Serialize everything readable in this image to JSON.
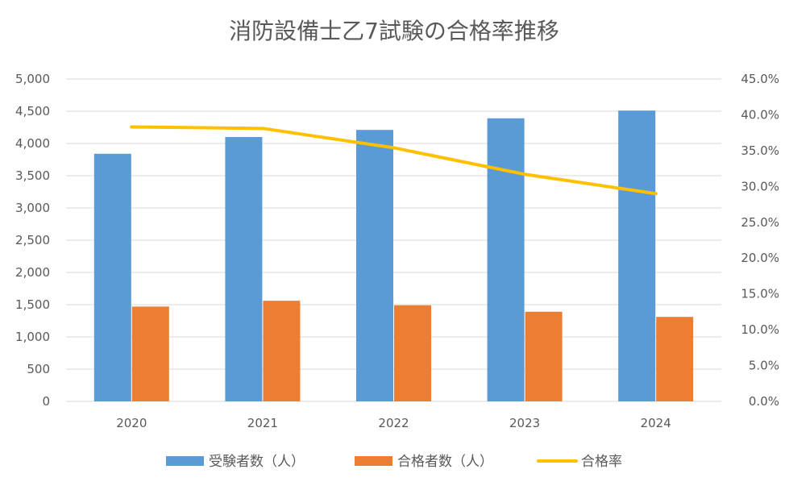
{
  "chart_data": {
    "type": "bar",
    "title": "消防設備士乙7試験の合格率推移",
    "categories": [
      "2020",
      "2021",
      "2022",
      "2023",
      "2024"
    ],
    "series": [
      {
        "name": "受験者数（人）",
        "kind": "bar",
        "axis": "left",
        "color": "#5B9BD5",
        "values": [
          3840,
          4100,
          4210,
          4390,
          4510
        ]
      },
      {
        "name": "合格者数（人）",
        "kind": "bar",
        "axis": "left",
        "color": "#ED7D31",
        "values": [
          1470,
          1560,
          1490,
          1390,
          1310
        ]
      },
      {
        "name": "合格率",
        "kind": "line",
        "axis": "right",
        "color": "#FFC000",
        "values": [
          0.383,
          0.381,
          0.354,
          0.317,
          0.29
        ]
      }
    ],
    "y_left": {
      "min": 0,
      "max": 5000,
      "step": 500,
      "tick_labels": [
        "0",
        "500",
        "1,000",
        "1,500",
        "2,000",
        "2,500",
        "3,000",
        "3,500",
        "4,000",
        "4,500",
        "5,000"
      ]
    },
    "y_right": {
      "min": 0,
      "max": 0.45,
      "step": 0.05,
      "tick_labels": [
        "0.0%",
        "5.0%",
        "10.0%",
        "15.0%",
        "20.0%",
        "25.0%",
        "30.0%",
        "35.0%",
        "40.0%",
        "45.0%"
      ]
    },
    "grid": true,
    "legend": "bottom"
  }
}
